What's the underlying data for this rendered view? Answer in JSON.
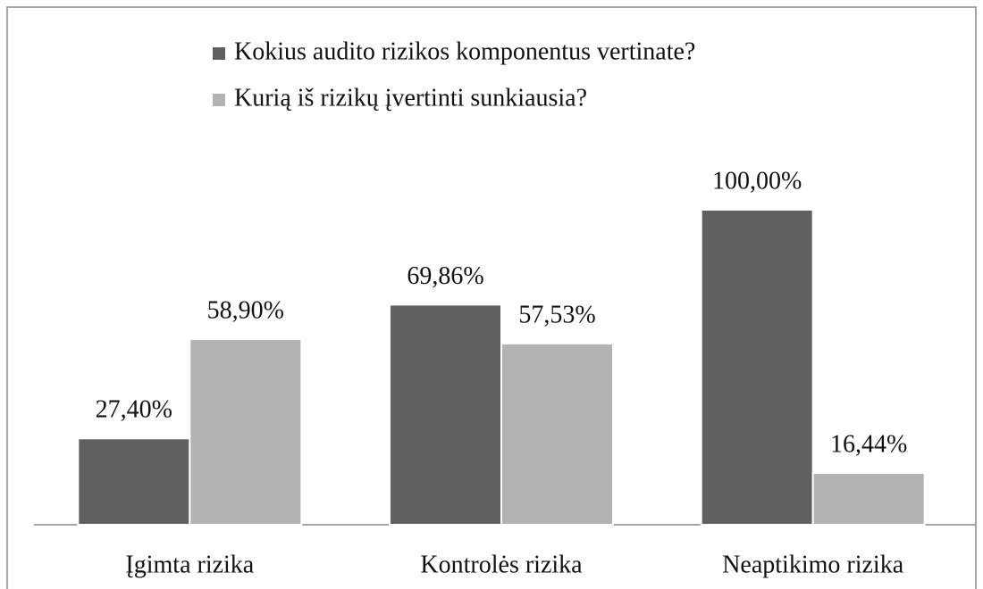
{
  "chart_data": {
    "type": "bar",
    "categories": [
      "Įgimta rizika",
      "Kontrolės rizika",
      "Neaptikimo rizika"
    ],
    "series": [
      {
        "name": "Kokius audito rizikos komponentus vertinate?",
        "color": "#606060",
        "values": [
          27.4,
          69.86,
          100.0
        ],
        "value_labels": [
          "27,40%",
          "69,86%",
          "100,00%"
        ]
      },
      {
        "name": "Kurią iš rizikų įvertinti sunkiausia?",
        "color": "#b3b3b3",
        "values": [
          58.9,
          57.53,
          16.44
        ],
        "value_labels": [
          "58,90%",
          "57,53%",
          "16,44%"
        ]
      }
    ],
    "legend": "top"
  }
}
